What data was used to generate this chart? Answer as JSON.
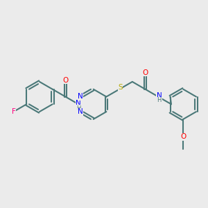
{
  "bg_color": "#ebebeb",
  "bond_color": "#4a7878",
  "bond_lw": 1.5,
  "atom_colors": {
    "F": "#ff007f",
    "O": "#ff0000",
    "N": "#0000ff",
    "S": "#b3a800",
    "C": "#000000",
    "H_label": "#4a7878"
  },
  "font_size": 7.5,
  "font_size_small": 6.5
}
